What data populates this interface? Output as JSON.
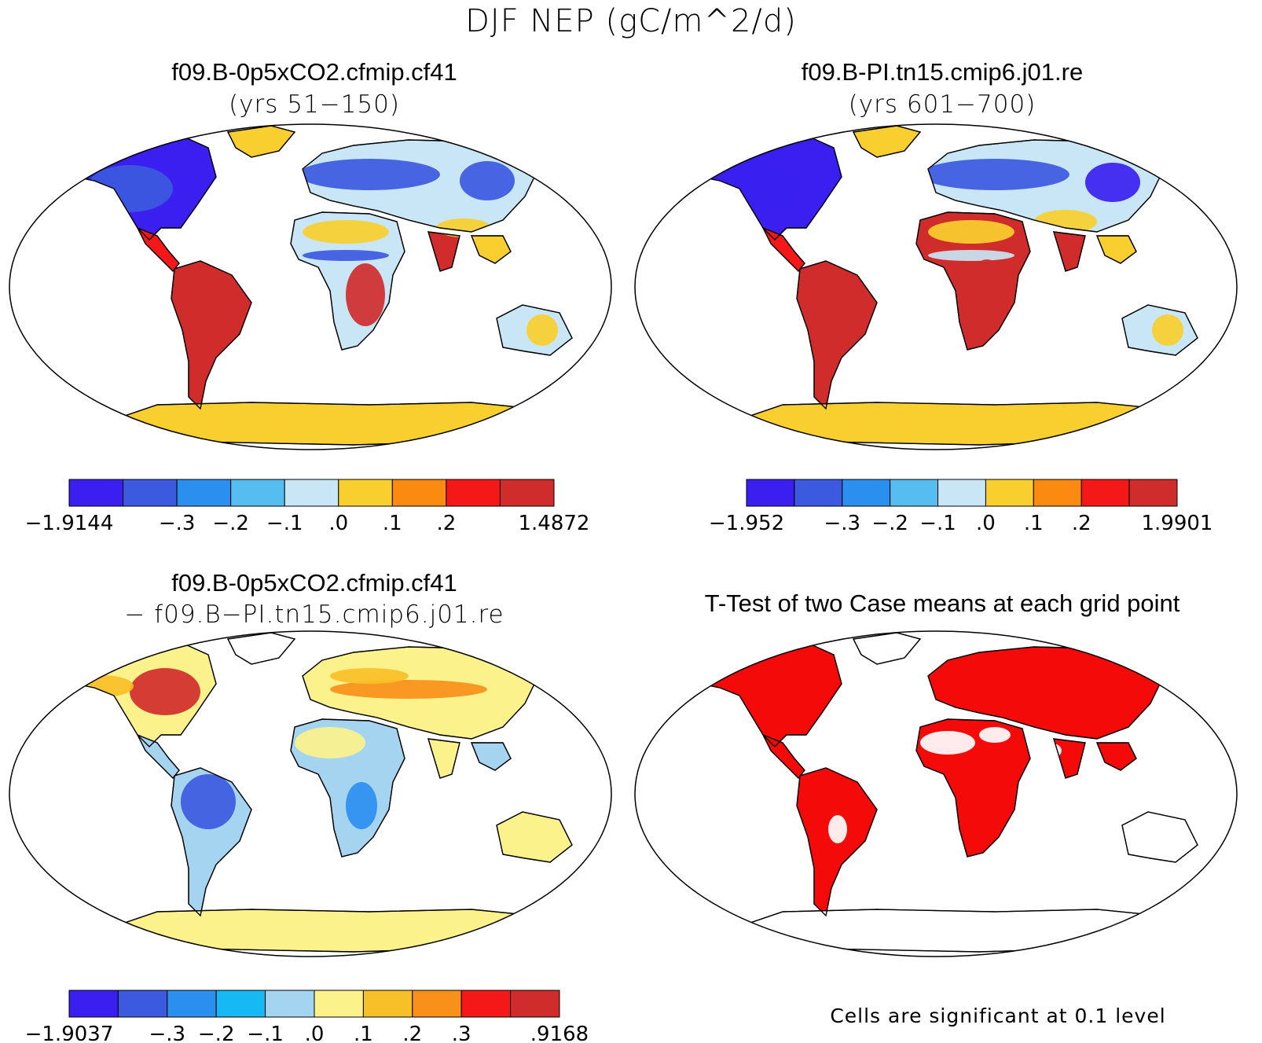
{
  "figure_title": "DJF NEP (gC/m^2/d)",
  "panels": [
    {
      "title": "f09.B-0p5xCO2.cfmip.cf41",
      "subtitle": "(yrs 51−150)"
    },
    {
      "title": "f09.B-PI.tn15.cmip6.j01.re",
      "subtitle": "(yrs 601−700)"
    },
    {
      "title": "f09.B-0p5xCO2.cfmip.cf41",
      "subtitle": "− f09.B−PI.tn15.cmip6.j01.re"
    },
    {
      "title": "T-Test of two Case means at each grid point",
      "subtitle": ""
    }
  ],
  "colorbars": [
    {
      "colors": [
        "#3a1ff0",
        "#3c5ae0",
        "#2b8ff0",
        "#55bdf0",
        "#c8e6f5",
        "#f8cf2e",
        "#fa8a10",
        "#f51818",
        "#d02c2c"
      ],
      "labels": [
        "−1.9144",
        "−.3",
        "−.2",
        "−.1",
        ".0",
        ".1",
        ".2",
        "1.4872"
      ],
      "label_positions": [
        0,
        2,
        3,
        4,
        5,
        6,
        7,
        9
      ]
    },
    {
      "colors": [
        "#3a1ff0",
        "#3c5ae0",
        "#2b8ff0",
        "#55bdf0",
        "#c8e6f5",
        "#f8cf2e",
        "#fa8a10",
        "#f51818",
        "#d02c2c"
      ],
      "labels": [
        "−1.952",
        "−.3",
        "−.2",
        "−.1",
        ".0",
        ".1",
        ".2",
        "1.9901"
      ],
      "label_positions": [
        0,
        2,
        3,
        4,
        5,
        6,
        7,
        9
      ]
    },
    {
      "colors": [
        "#3a1ff0",
        "#3c5ae0",
        "#2b8ff0",
        "#16b9f4",
        "#a4d4f0",
        "#fcf28c",
        "#f8c028",
        "#f8901a",
        "#f51818",
        "#d02c2c"
      ],
      "labels": [
        "−1.9037",
        "−.3",
        "−.2",
        "−.1",
        ".0",
        ".1",
        ".2",
        ".3",
        ".9168"
      ],
      "label_positions": [
        0,
        2,
        3,
        4,
        5,
        6,
        7,
        8,
        10
      ]
    }
  ],
  "significance_note": "Cells are significant at 0.1 level",
  "colors": {
    "ocean": "#ffffff",
    "significant": "#f50a0a",
    "antarctica": "#f8cf2e",
    "coast": "#000000"
  }
}
